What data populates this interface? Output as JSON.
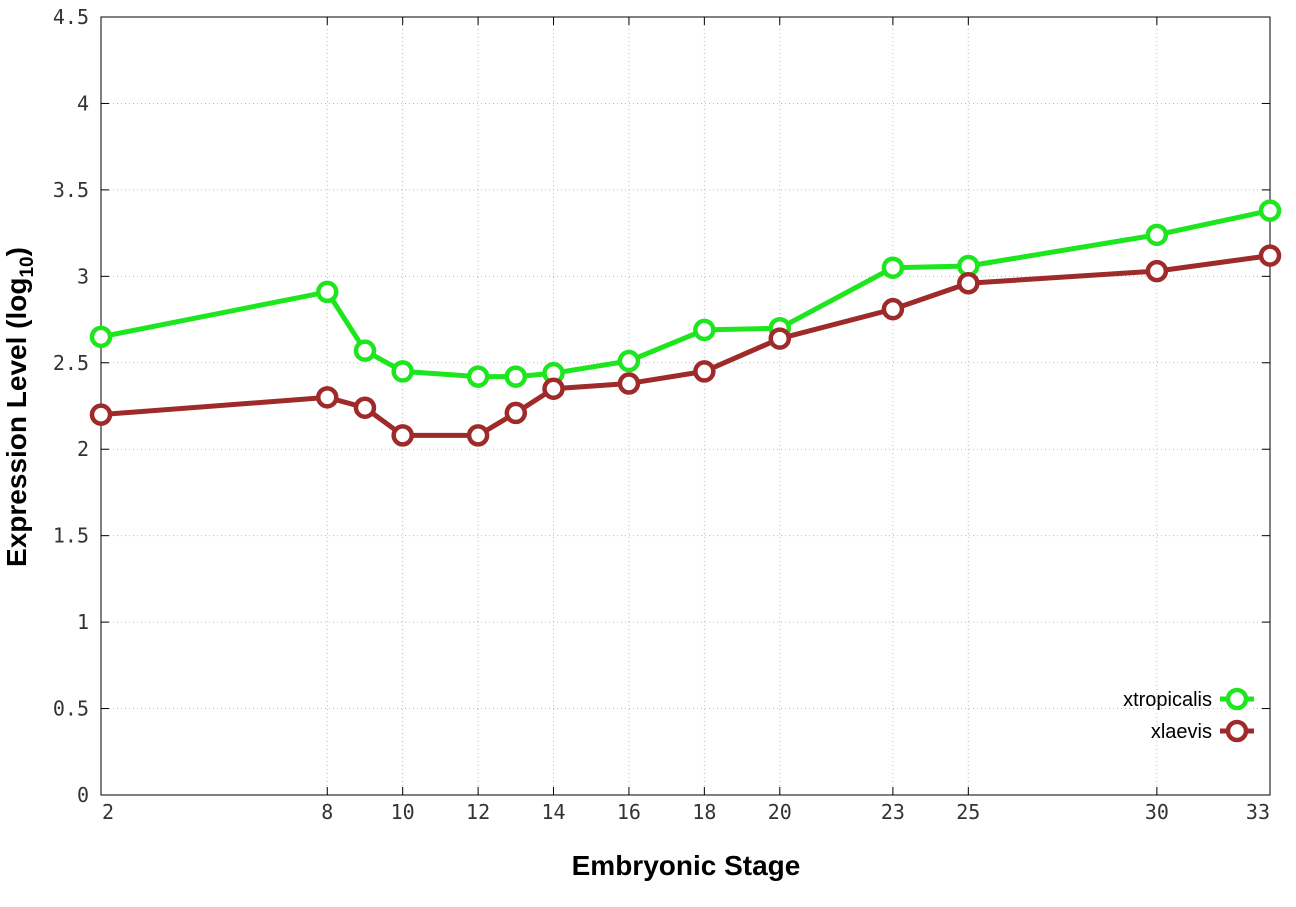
{
  "chart_data": {
    "type": "line",
    "title": "",
    "xlabel": "Embryonic Stage",
    "ylabel": "Expression Level (log",
    "ylabel_subscript": "10",
    "ylabel_suffix": ")",
    "xlim": [
      2,
      33
    ],
    "ylim": [
      0,
      4.5
    ],
    "x_ticks": [
      2,
      8,
      10,
      12,
      14,
      16,
      18,
      20,
      23,
      25,
      30,
      33
    ],
    "y_ticks": [
      "0",
      "0.5",
      "1",
      "1.5",
      "2",
      "2.5",
      "3",
      "3.5",
      "4",
      "4.5"
    ],
    "grid": true,
    "legend_position": "bottom-right",
    "x": [
      2,
      8,
      9,
      10,
      12,
      13,
      14,
      16,
      18,
      20,
      23,
      25,
      30,
      33
    ],
    "series": [
      {
        "name": "xtropicalis",
        "color": "#1ee61e",
        "values": [
          2.65,
          2.91,
          2.57,
          2.45,
          2.42,
          2.42,
          2.44,
          2.51,
          2.69,
          2.7,
          3.05,
          3.06,
          3.24,
          3.38
        ]
      },
      {
        "name": "xlaevis",
        "color": "#9e2a2a",
        "values": [
          2.2,
          2.3,
          2.24,
          2.08,
          2.08,
          2.21,
          2.35,
          2.38,
          2.45,
          2.64,
          2.81,
          2.96,
          3.03,
          3.12
        ]
      }
    ]
  }
}
